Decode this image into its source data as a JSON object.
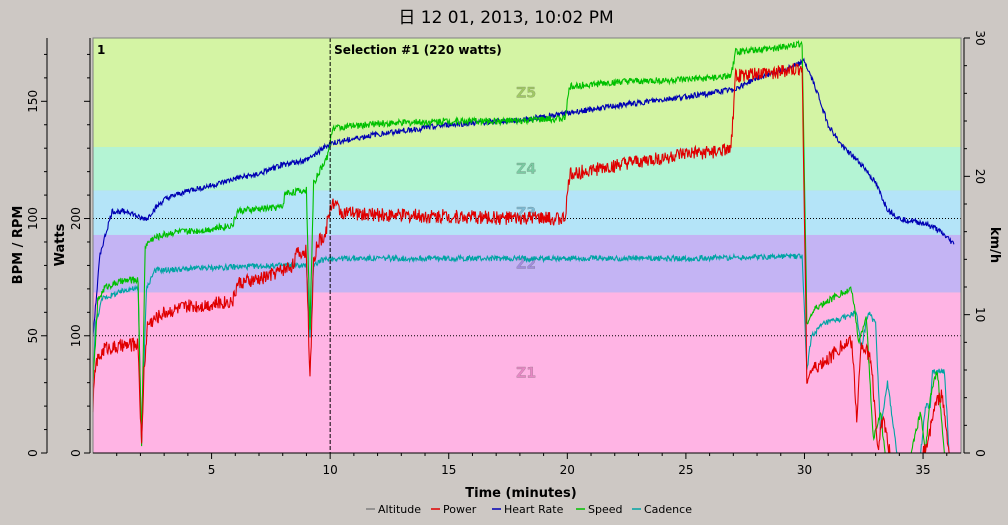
{
  "chart_data": {
    "type": "line",
    "title": "日 12 01, 2013, 10:02 PM",
    "xlabel": "Time (minutes)",
    "ylabel_left_outer": "BPM / RPM",
    "ylabel_left_inner": "Watts",
    "ylabel_right": "km/h",
    "xlim": [
      0,
      36.6
    ],
    "x_ticks": [
      5,
      10,
      15,
      20,
      25,
      30,
      35
    ],
    "bpm_lim": [
      0,
      177
    ],
    "bpm_ticks": [
      0,
      50,
      100,
      150
    ],
    "watts_lim": [
      0,
      354
    ],
    "watts_ticks": [
      0,
      100,
      200
    ],
    "kmh_lim": [
      0,
      30
    ],
    "kmh_ticks": [
      0,
      10,
      20,
      30
    ],
    "reference_lines_watts": [
      100,
      200
    ],
    "selection": {
      "x": 10,
      "marker": "1",
      "label": "Selection #1 (220 watts)"
    },
    "zones": [
      {
        "name": "Z1",
        "from": 0,
        "to": 137,
        "color": "#ffb4e4"
      },
      {
        "name": "Z2",
        "from": 137,
        "to": 186,
        "color": "#c4b4f4"
      },
      {
        "name": "Z3",
        "from": 186,
        "to": 224,
        "color": "#b4e4f8"
      },
      {
        "name": "Z4",
        "from": 224,
        "to": 261,
        "color": "#b4f4d4"
      },
      {
        "name": "Z5",
        "from": 261,
        "to": 354,
        "color": "#d4f4a4"
      }
    ],
    "legend_position": "bottom",
    "legend": [
      "Altitude",
      "Power",
      "Heart Rate",
      "Speed",
      "Cadence"
    ],
    "series": [
      {
        "name": "Power",
        "axis": "watts",
        "color": "#e00000",
        "x": [
          0,
          0.1,
          0.5,
          1,
          1.5,
          1.9,
          2.05,
          2.15,
          2.3,
          3,
          4,
          5,
          5.9,
          6.1,
          7,
          8.4,
          8.6,
          9.0,
          9.15,
          9.3,
          9.5,
          9.8,
          9.9,
          10.1,
          10.5,
          12,
          15,
          18,
          19.9,
          20.1,
          22,
          25,
          26.9,
          27.1,
          29,
          29.9,
          30.1,
          30.3,
          31,
          31.5,
          32,
          32.2,
          32.4,
          32.8,
          33.1,
          33.3,
          33.6,
          33.9,
          34.5,
          35,
          35.2,
          35.5,
          35.8,
          36.1,
          36.5
        ],
        "values": [
          40,
          75,
          90,
          90,
          92,
          93,
          5,
          70,
          110,
          120,
          125,
          127,
          130,
          145,
          148,
          160,
          170,
          172,
          60,
          165,
          180,
          185,
          200,
          215,
          205,
          203,
          202,
          200,
          200,
          238,
          245,
          255,
          258,
          322,
          325,
          328,
          65,
          70,
          80,
          90,
          95,
          30,
          95,
          80,
          5,
          30,
          0,
          0,
          0,
          0,
          10,
          40,
          50,
          0,
          0
        ]
      },
      {
        "name": "Heart Rate",
        "axis": "bpm",
        "color": "#0000b4",
        "x": [
          0,
          0.3,
          0.8,
          1.5,
          2,
          2.3,
          2.5,
          3,
          4,
          5,
          6,
          7,
          8,
          9,
          10,
          12,
          15,
          18,
          20,
          22,
          25,
          27,
          28,
          29,
          30,
          30.5,
          31,
          31.5,
          32,
          32.5,
          33,
          33.5,
          34,
          34.5,
          35,
          35.5,
          36,
          36.3
        ],
        "values": [
          50,
          85,
          103,
          103,
          100,
          100,
          103,
          108,
          112,
          114,
          117,
          119,
          123,
          125,
          132,
          136,
          140,
          142,
          145,
          148,
          152,
          155,
          160,
          163,
          167,
          155,
          140,
          132,
          127,
          122,
          115,
          104,
          100,
          99,
          98,
          96,
          92,
          89
        ]
      },
      {
        "name": "Speed",
        "axis": "kmh",
        "color": "#00c000",
        "x": [
          0,
          0.2,
          0.5,
          1,
          1.5,
          1.9,
          2.05,
          2.2,
          2.5,
          3,
          3.5,
          4,
          5,
          5.9,
          6.1,
          8,
          8.1,
          9.0,
          9.15,
          9.3,
          9.6,
          9.9,
          10.1,
          12,
          15,
          18,
          19.9,
          20.1,
          22,
          25,
          26.9,
          27.1,
          29,
          29.9,
          30.1,
          30.3,
          30.5,
          31,
          31.5,
          32,
          32.3,
          32.6,
          32.9,
          33.2,
          33.4,
          33.7,
          34,
          34.5,
          34.9,
          35.1,
          35.3,
          35.6,
          35.9,
          36.2,
          36.5
        ],
        "values": [
          5,
          11,
          12,
          12.3,
          12.5,
          12.5,
          0.5,
          15,
          15.5,
          15.8,
          16,
          16,
          16.2,
          16.5,
          17.5,
          17.8,
          18.8,
          19,
          9,
          19.5,
          20.5,
          21.5,
          23.5,
          23.8,
          24,
          24,
          24.2,
          26.5,
          26.8,
          27,
          27.2,
          29,
          29.3,
          29.6,
          9.5,
          10,
          10.5,
          11,
          11.5,
          11.8,
          8,
          10,
          1,
          3,
          0,
          0,
          0,
          0,
          3,
          0,
          4,
          6,
          0,
          0,
          0
        ]
      },
      {
        "name": "Cadence",
        "axis": "bpm",
        "color": "#00a4a4",
        "x": [
          0,
          0.1,
          0.4,
          1,
          1.5,
          1.9,
          2.05,
          2.25,
          2.6,
          3,
          5,
          8,
          9.0,
          9.15,
          9.3,
          9.6,
          10,
          12,
          15,
          20,
          25,
          29.9,
          30.1,
          30.3,
          30.8,
          31.5,
          32.2,
          32.4,
          32.7,
          33.0,
          33.2,
          33.5,
          33.9,
          34.5,
          34.9,
          35.1,
          35.3,
          35.4,
          35.9,
          36.1,
          36.5
        ],
        "values": [
          30,
          55,
          66,
          68,
          70,
          70,
          5,
          70,
          78,
          78,
          79,
          80,
          80,
          50,
          80,
          82,
          83,
          83,
          83,
          83,
          83,
          84,
          35,
          50,
          55,
          57,
          60,
          45,
          60,
          55,
          10,
          30,
          0,
          0,
          0,
          20,
          20,
          35,
          35,
          0,
          0
        ]
      },
      {
        "name": "Altitude",
        "axis": "bpm",
        "color": "#808080",
        "x": [],
        "values": []
      }
    ]
  },
  "legend_colors": {
    "Altitude": "#808080",
    "Power": "#e00000",
    "Heart Rate": "#0000b4",
    "Speed": "#00c000",
    "Cadence": "#00a4a4"
  }
}
